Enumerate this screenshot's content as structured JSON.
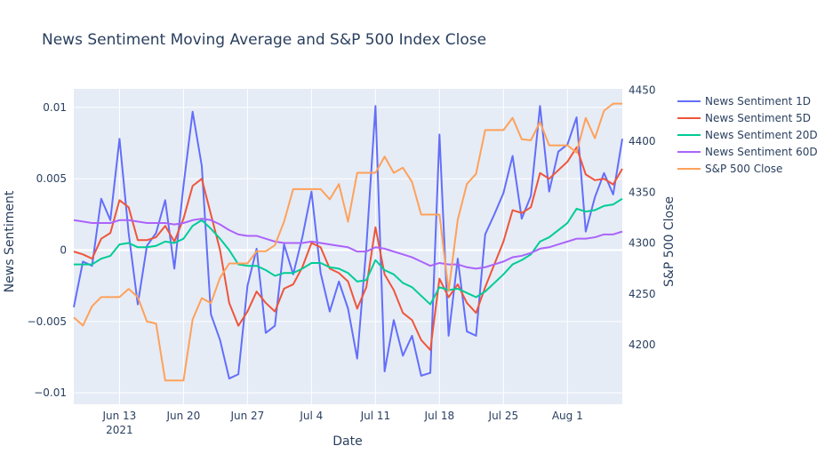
{
  "chart_data": {
    "type": "line",
    "title": "News Sentiment Moving Average and S&P 500 Index Close",
    "x_label": "Date",
    "y_label": "News Sentiment",
    "y2_label": "S&P 500 Close",
    "x": [
      "2021-06-08",
      "2021-06-09",
      "2021-06-10",
      "2021-06-11",
      "2021-06-12",
      "2021-06-13",
      "2021-06-14",
      "2021-06-15",
      "2021-06-16",
      "2021-06-17",
      "2021-06-18",
      "2021-06-19",
      "2021-06-20",
      "2021-06-21",
      "2021-06-22",
      "2021-06-23",
      "2021-06-24",
      "2021-06-25",
      "2021-06-26",
      "2021-06-27",
      "2021-06-28",
      "2021-06-29",
      "2021-06-30",
      "2021-07-01",
      "2021-07-02",
      "2021-07-03",
      "2021-07-04",
      "2021-07-05",
      "2021-07-06",
      "2021-07-07",
      "2021-07-08",
      "2021-07-09",
      "2021-07-10",
      "2021-07-11",
      "2021-07-12",
      "2021-07-13",
      "2021-07-14",
      "2021-07-15",
      "2021-07-16",
      "2021-07-17",
      "2021-07-18",
      "2021-07-19",
      "2021-07-20",
      "2021-07-21",
      "2021-07-22",
      "2021-07-23",
      "2021-07-24",
      "2021-07-25",
      "2021-07-26",
      "2021-07-27",
      "2021-07-28",
      "2021-07-29",
      "2021-07-30",
      "2021-07-31",
      "2021-08-01",
      "2021-08-02",
      "2021-08-03",
      "2021-08-04",
      "2021-08-05",
      "2021-08-06",
      "2021-08-07"
    ],
    "xlim": [
      "2021-06-08",
      "2021-08-07"
    ],
    "xticks": [
      {
        "value": "2021-06-13",
        "label": "Jun 13",
        "sublabel": "2021"
      },
      {
        "value": "2021-06-20",
        "label": "Jun 20"
      },
      {
        "value": "2021-06-27",
        "label": "Jun 27"
      },
      {
        "value": "2021-07-04",
        "label": "Jul 4"
      },
      {
        "value": "2021-07-11",
        "label": "Jul 11"
      },
      {
        "value": "2021-07-18",
        "label": "Jul 18"
      },
      {
        "value": "2021-07-25",
        "label": "Jul 25"
      },
      {
        "value": "2021-08-01",
        "label": "Aug 1"
      }
    ],
    "ylim": [
      -0.0108,
      0.0113
    ],
    "yticks": [
      {
        "value": -0.01,
        "label": "−0.01"
      },
      {
        "value": -0.005,
        "label": "−0.005"
      },
      0,
      0.005,
      0.01
    ],
    "y2lim": [
      4141.7,
      4451.5
    ],
    "y2ticks": [
      4200,
      4250,
      4300,
      4350,
      4400,
      4450
    ],
    "grid": true,
    "legend": "right",
    "series": [
      {
        "name": "News Sentiment 1D",
        "color": "#636efa",
        "values": [
          -0.004,
          -0.0008,
          -0.0011,
          0.0036,
          0.0021,
          0.0078,
          0.0012,
          -0.0038,
          0.0003,
          0.0012,
          0.0035,
          -0.0013,
          0.0045,
          0.0097,
          0.0059,
          -0.0045,
          -0.0063,
          -0.009,
          -0.0087,
          -0.0025,
          0.0001,
          -0.0058,
          -0.0053,
          0.0004,
          -0.0017,
          0.0009,
          0.0041,
          -0.0016,
          -0.0043,
          -0.0022,
          -0.0041,
          -0.0076,
          0.0002,
          0.0101,
          -0.0085,
          -0.0049,
          -0.0074,
          -0.006,
          -0.0088,
          -0.0086,
          0.0081,
          -0.006,
          -0.0006,
          -0.0057,
          -0.006,
          0.0011,
          0.0025,
          0.004,
          0.0066,
          0.0022,
          0.0038,
          0.0101,
          0.0041,
          0.0069,
          0.0074,
          0.0093,
          0.0013,
          0.0037,
          0.0054,
          0.0039,
          0.0078
        ]
      },
      {
        "name": "News Sentiment 5D",
        "color": "#EF553B",
        "values": [
          -0.0001,
          -0.0003,
          -0.0006,
          0.0008,
          0.0012,
          0.0035,
          0.003,
          0.0007,
          0.0007,
          0.0009,
          0.0017,
          0.0006,
          0.0022,
          0.0045,
          0.005,
          0.0025,
          0.0,
          -0.0037,
          -0.0053,
          -0.0043,
          -0.0029,
          -0.0037,
          -0.0043,
          -0.0027,
          -0.0024,
          -0.0012,
          0.0005,
          0.0002,
          -0.0013,
          -0.0016,
          -0.0022,
          -0.0041,
          -0.0026,
          0.0016,
          -0.0017,
          -0.0028,
          -0.0044,
          -0.0049,
          -0.0063,
          -0.007,
          -0.002,
          -0.0033,
          -0.0024,
          -0.0037,
          -0.0044,
          -0.0026,
          -0.001,
          0.0006,
          0.0028,
          0.0026,
          0.003,
          0.0054,
          0.005,
          0.0056,
          0.0062,
          0.0072,
          0.0053,
          0.0049,
          0.005,
          0.0046,
          0.0057
        ]
      },
      {
        "name": "News Sentiment 20D",
        "color": "#00cc96",
        "values": [
          -0.001,
          -0.001,
          -0.001,
          -0.0006,
          -0.0004,
          0.0004,
          0.0005,
          0.0002,
          0.0002,
          0.0003,
          0.0006,
          0.0005,
          0.0008,
          0.0017,
          0.0021,
          0.0015,
          0.0008,
          0.0,
          -0.001,
          -0.0011,
          -0.0011,
          -0.0014,
          -0.0018,
          -0.0016,
          -0.0016,
          -0.0013,
          -0.0009,
          -0.0009,
          -0.0012,
          -0.0013,
          -0.0016,
          -0.0022,
          -0.0021,
          -0.0007,
          -0.0014,
          -0.0017,
          -0.0023,
          -0.0026,
          -0.0032,
          -0.0038,
          -0.0026,
          -0.0028,
          -0.0027,
          -0.003,
          -0.0033,
          -0.0029,
          -0.0023,
          -0.0017,
          -0.001,
          -0.0007,
          -0.0003,
          0.0006,
          0.0009,
          0.0014,
          0.0019,
          0.0029,
          0.0027,
          0.0028,
          0.0031,
          0.0032,
          0.0036
        ]
      },
      {
        "name": "News Sentiment 60D",
        "color": "#ab63fa",
        "values": [
          0.0021,
          0.002,
          0.0019,
          0.0019,
          0.0019,
          0.0021,
          0.0021,
          0.002,
          0.0019,
          0.0019,
          0.0019,
          0.0018,
          0.0019,
          0.0021,
          0.0022,
          0.0021,
          0.0018,
          0.0014,
          0.0011,
          0.001,
          0.001,
          0.0008,
          0.0006,
          0.0005,
          0.0005,
          0.0005,
          0.0006,
          0.0005,
          0.0004,
          0.0003,
          0.0002,
          -0.0001,
          -0.0001,
          0.0002,
          0.0001,
          -0.0001,
          -0.0003,
          -0.0005,
          -0.0008,
          -0.0011,
          -0.0009,
          -0.001,
          -0.001,
          -0.0012,
          -0.0013,
          -0.0012,
          -0.001,
          -0.0008,
          -0.0005,
          -0.0004,
          -0.0002,
          0.0001,
          0.0002,
          0.0004,
          0.0006,
          0.0008,
          0.0008,
          0.0009,
          0.0011,
          0.0011,
          0.0013
        ]
      },
      {
        "name": "S&P 500 Close",
        "color": "#FFA15A",
        "axis": "y2",
        "values": [
          4227,
          4219,
          4238,
          4247,
          4247,
          4247,
          4255,
          4247,
          4223,
          4221,
          4165,
          4165,
          4165,
          4225,
          4246,
          4241,
          4266,
          4280,
          4280,
          4280,
          4292,
          4292,
          4298,
          4321,
          4353,
          4353,
          4353,
          4353,
          4343,
          4358,
          4321,
          4369,
          4369,
          4369,
          4385,
          4369,
          4374,
          4360,
          4328,
          4328,
          4328,
          4253,
          4323,
          4358,
          4368,
          4411,
          4411,
          4411,
          4423,
          4402,
          4401,
          4419,
          4396,
          4396,
          4396,
          4389,
          4423,
          4403,
          4430,
          4437,
          4437
        ]
      }
    ]
  }
}
